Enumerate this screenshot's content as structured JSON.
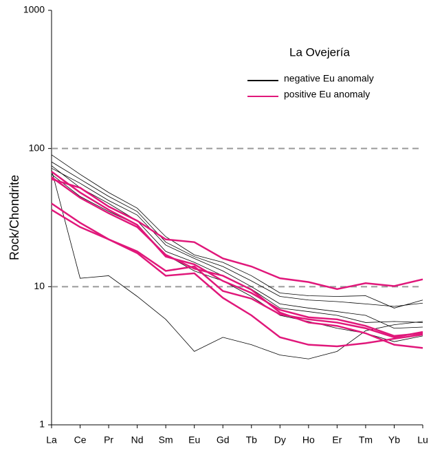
{
  "chart_data": {
    "type": "line",
    "annotation": "La Ovejería",
    "y_label": "Rock/Chondrite",
    "categories": [
      "La",
      "Ce",
      "Pr",
      "Nd",
      "Sm",
      "Eu",
      "Gd",
      "Tb",
      "Dy",
      "Ho",
      "Er",
      "Tm",
      "Yb",
      "Lu"
    ],
    "log_y": true,
    "ylim": [
      1,
      1000
    ],
    "yticks": [
      1,
      10,
      100,
      1000
    ],
    "dashed_lines": [
      10,
      100
    ],
    "series": [
      {
        "name": "negative Eu anomaly",
        "color": "#000000",
        "lines": [
          [
            72,
            56,
            42,
            33,
            20,
            16,
            13,
            10,
            7.5,
            7.0,
            6.6,
            6.2,
            5.0,
            5.1
          ],
          [
            70,
            11.5,
            12,
            8.5,
            5.8,
            3.4,
            4.3,
            3.8,
            3.2,
            3.0,
            3.4,
            4.8,
            5.3,
            5.6
          ],
          [
            90,
            65,
            48,
            37,
            23,
            17,
            15,
            12,
            9.0,
            8.6,
            8.5,
            8.6,
            7.0,
            8.0
          ],
          [
            80,
            60,
            45,
            35,
            21,
            16.5,
            14,
            11,
            8.5,
            8.0,
            7.8,
            7.5,
            7.2,
            7.6
          ],
          [
            75,
            52,
            40,
            30,
            18,
            15,
            12,
            9.6,
            7.0,
            6.6,
            6.2,
            5.5,
            5.6,
            5.5
          ],
          [
            65,
            45,
            35,
            28,
            17,
            13,
            11,
            8.5,
            6.2,
            5.6,
            5.0,
            4.6,
            4.0,
            4.4
          ]
        ]
      },
      {
        "name": "positive Eu anomaly",
        "color": "#e0177a",
        "lines": [
          [
            60,
            52,
            38,
            30,
            22,
            21,
            16,
            14,
            11.5,
            10.8,
            9.6,
            10.6,
            10.1,
            11.3
          ],
          [
            68,
            48,
            36,
            28,
            16.5,
            14.5,
            11,
            9,
            6.8,
            6.0,
            5.8,
            5.2,
            4.4,
            4.6
          ],
          [
            62,
            44,
            34,
            27,
            17,
            13.5,
            12,
            9.5,
            6.5,
            5.5,
            5.2,
            4.6,
            3.8,
            3.6
          ],
          [
            40,
            29,
            22,
            17.5,
            12,
            12.5,
            8.3,
            6.2,
            4.3,
            3.8,
            3.7,
            3.9,
            4.2,
            4.5
          ],
          [
            36,
            27,
            22,
            18,
            13,
            14,
            9.3,
            8.2,
            6.3,
            5.8,
            5.5,
            5.0,
            4.3,
            4.7
          ]
        ]
      }
    ]
  }
}
